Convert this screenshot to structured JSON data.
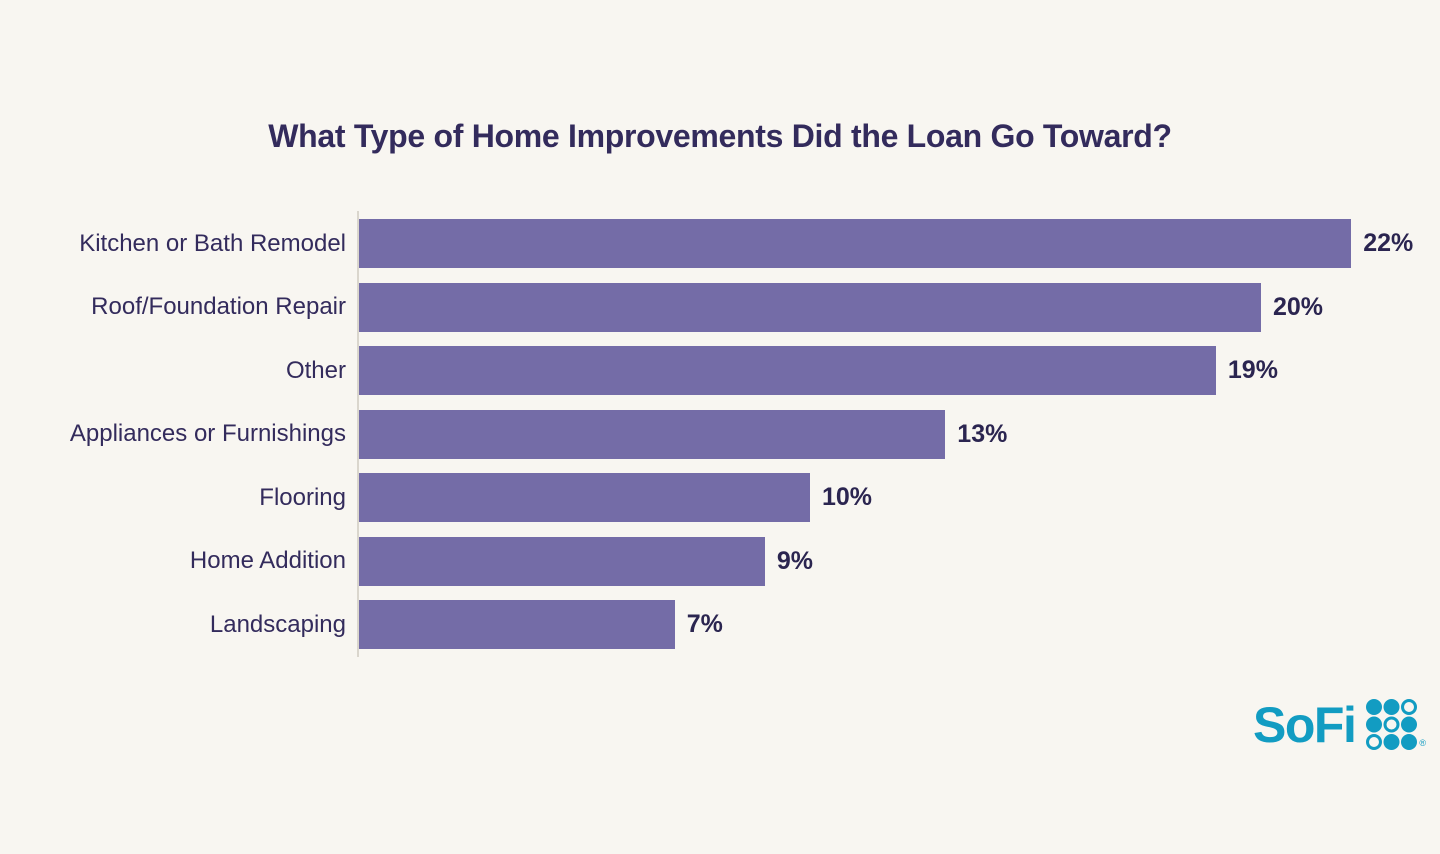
{
  "title": "What Type of Home Improvements Did the Loan Go Toward?",
  "brand": {
    "logo_text": "SoFi",
    "registered_mark": "®",
    "logo_color": "#129CC2",
    "logo_grid_pattern": [
      [
        "filled",
        "filled",
        "outlined"
      ],
      [
        "filled",
        "outlined",
        "filled"
      ],
      [
        "outlined",
        "filled",
        "filled"
      ]
    ]
  },
  "colors": {
    "background": "#F8F6F1",
    "bar": "#746CA7",
    "text": "#332B5C",
    "value_text": "#2B2550",
    "axis_line": "#DAD6CD"
  },
  "chart_data": {
    "type": "bar",
    "orientation": "horizontal",
    "title": "What Type of Home Improvements Did the Loan Go Toward?",
    "categories": [
      "Kitchen or Bath Remodel",
      "Roof/Foundation Repair",
      "Other",
      "Appliances or Furnishings",
      "Flooring",
      "Home Addition",
      "Landscaping"
    ],
    "values": [
      22,
      20,
      19,
      13,
      10,
      9,
      7
    ],
    "value_labels": [
      "22%",
      "20%",
      "19%",
      "13%",
      "10%",
      "9%",
      "7%"
    ],
    "unit": "percent",
    "xlabel": "",
    "ylabel": "",
    "xlim": [
      0,
      22
    ],
    "grid": false,
    "legend": false,
    "data_labels": "outside-end",
    "category_labels_position": "left"
  }
}
